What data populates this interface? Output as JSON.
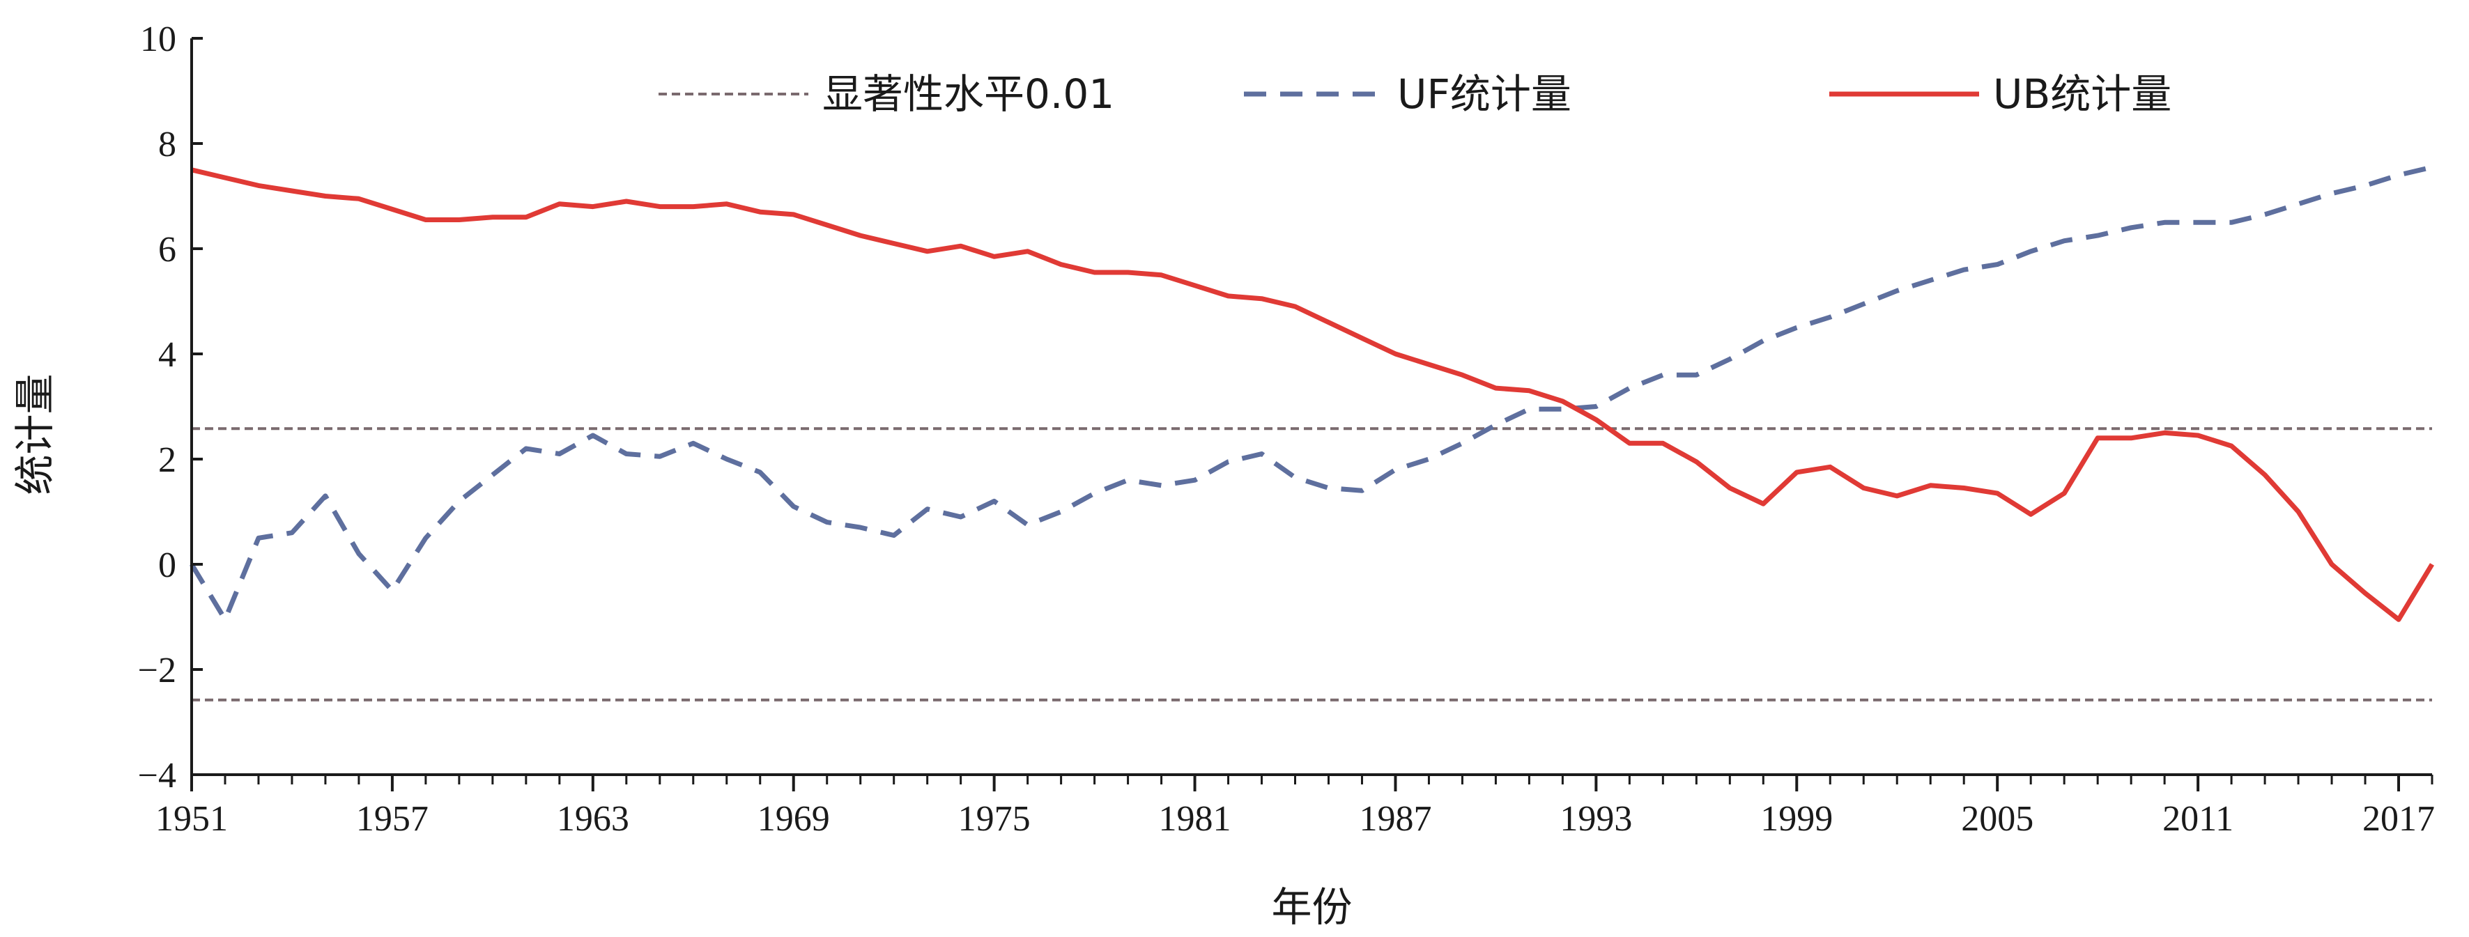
{
  "chart_data": {
    "type": "line",
    "xlabel": "年份",
    "ylabel": "统计量",
    "xlim": [
      1951,
      2018
    ],
    "ylim": [
      -4,
      10
    ],
    "x_ticks": [
      1951,
      1957,
      1963,
      1969,
      1975,
      1981,
      1987,
      1993,
      1999,
      2005,
      2011,
      2017
    ],
    "y_ticks": [
      {
        "value": 10,
        "label": "10"
      },
      {
        "value": 8,
        "label": "8"
      },
      {
        "value": 6,
        "label": "6"
      },
      {
        "value": 4,
        "label": "4"
      },
      {
        "value": 2,
        "label": "2"
      },
      {
        "value": 0,
        "label": "0"
      },
      {
        "value": -2,
        "label": "−2"
      },
      {
        "value": -4,
        "label": "−4"
      }
    ],
    "grid": false,
    "legend_position": "top",
    "x": [
      1951,
      1952,
      1953,
      1954,
      1955,
      1956,
      1957,
      1958,
      1959,
      1960,
      1961,
      1962,
      1963,
      1964,
      1965,
      1966,
      1967,
      1968,
      1969,
      1970,
      1971,
      1972,
      1973,
      1974,
      1975,
      1976,
      1977,
      1978,
      1979,
      1980,
      1981,
      1982,
      1983,
      1984,
      1985,
      1986,
      1987,
      1988,
      1989,
      1990,
      1991,
      1992,
      1993,
      1994,
      1995,
      1996,
      1997,
      1998,
      1999,
      2000,
      2001,
      2002,
      2003,
      2004,
      2005,
      2006,
      2007,
      2008,
      2009,
      2010,
      2011,
      2012,
      2013,
      2014,
      2015,
      2016,
      2017,
      2018
    ],
    "thresholds": {
      "name": "显著性水平0.01",
      "values": [
        2.58,
        -2.58
      ],
      "color": "#7a6a6e"
    },
    "series": [
      {
        "name": "UF统计量",
        "style": "dashed",
        "color": "#5e6f9e",
        "values": [
          0.0,
          -1.05,
          0.5,
          0.6,
          1.3,
          0.2,
          -0.5,
          0.5,
          1.2,
          1.7,
          2.2,
          2.1,
          2.45,
          2.1,
          2.05,
          2.3,
          2.0,
          1.75,
          1.1,
          0.8,
          0.7,
          0.55,
          1.05,
          0.9,
          1.2,
          0.75,
          1.0,
          1.35,
          1.6,
          1.5,
          1.6,
          1.95,
          2.1,
          1.65,
          1.45,
          1.4,
          1.8,
          2.0,
          2.3,
          2.65,
          2.95,
          2.95,
          3.0,
          3.35,
          3.6,
          3.6,
          3.9,
          4.25,
          4.5,
          4.7,
          4.95,
          5.2,
          5.4,
          5.6,
          5.7,
          5.95,
          6.15,
          6.25,
          6.4,
          6.5,
          6.5,
          6.5,
          6.65,
          6.85,
          7.05,
          7.2,
          7.4,
          7.55
        ]
      },
      {
        "name": "UB统计量",
        "style": "solid",
        "color": "#e03a35",
        "values": [
          7.5,
          7.35,
          7.2,
          7.1,
          7.0,
          6.95,
          6.75,
          6.55,
          6.55,
          6.6,
          6.6,
          6.85,
          6.8,
          6.9,
          6.8,
          6.8,
          6.85,
          6.7,
          6.65,
          6.45,
          6.25,
          6.1,
          5.95,
          6.05,
          5.85,
          5.95,
          5.7,
          5.55,
          5.55,
          5.5,
          5.3,
          5.1,
          5.05,
          4.9,
          4.6,
          4.3,
          4.0,
          3.8,
          3.6,
          3.35,
          3.3,
          3.1,
          2.75,
          2.3,
          2.3,
          1.95,
          1.45,
          1.15,
          1.75,
          1.85,
          1.45,
          1.3,
          1.5,
          1.45,
          1.35,
          0.95,
          1.35,
          2.4,
          2.4,
          2.5,
          2.45,
          2.25,
          1.7,
          1.0,
          0.0,
          -0.55,
          -1.05,
          0.0
        ]
      }
    ]
  }
}
